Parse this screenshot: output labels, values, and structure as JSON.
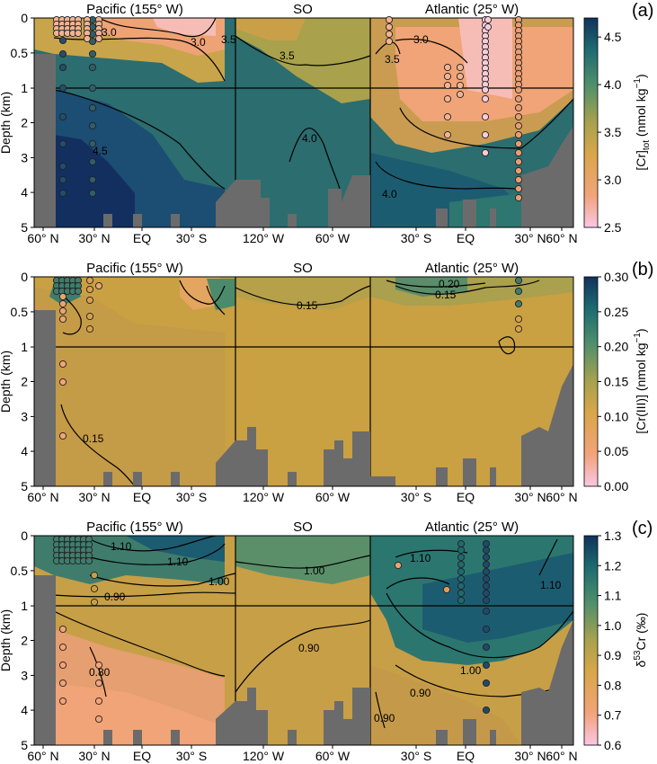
{
  "chart_data": [
    {
      "panel": "(a)",
      "type": "heatmap",
      "ylabel": "Depth (km)",
      "yticks": [
        "0",
        "0.5",
        "1",
        "2",
        "3",
        "4",
        "5"
      ],
      "section_titles": [
        "Pacific (155° W)",
        "SO",
        "Atlantic (25° W)"
      ],
      "section_xticks": [
        [
          "60° N",
          "30° N",
          "EQ",
          "30° S"
        ],
        [
          "120° W",
          "60° W"
        ],
        [
          "30° S",
          "EQ",
          "30° N",
          "60° N"
        ]
      ],
      "colorbar": {
        "label": "[Cr]tot (nmol kg−1)",
        "range": [
          2.5,
          4.7
        ],
        "ticks": [
          "2.5",
          "3.0",
          "3.5",
          "4.0",
          "4.5"
        ],
        "colors": [
          "#f9c6e6",
          "#f3a37b",
          "#d9a64a",
          "#a8a24d",
          "#4f8f6c",
          "#1d6b70",
          "#11325c"
        ]
      },
      "contour_labels": [
        "3.0",
        "3.5",
        "3.0",
        "3.5",
        "4.5",
        "4.0",
        "3.0",
        "3.5",
        "4.0"
      ],
      "stations_dark": [
        7,
        8,
        9,
        10
      ],
      "stations_light": [
        10,
        10,
        10,
        14,
        14,
        14,
        10
      ],
      "stations_count": 81
    },
    {
      "panel": "(b)",
      "type": "heatmap",
      "ylabel": "Depth (km)",
      "yticks": [
        "0",
        "0.5",
        "1",
        "2",
        "3",
        "4",
        "5"
      ],
      "section_titles": [
        "Pacific (155° W)",
        "SO",
        "Atlantic (25° W)"
      ],
      "section_xticks": [
        [
          "60° N",
          "30° N",
          "EQ",
          "30° S"
        ],
        [
          "120° W",
          "60° W"
        ],
        [
          "30° S",
          "EQ",
          "30° N",
          "60° N"
        ]
      ],
      "colorbar": {
        "label": "[Cr(III)] (nmol kg−1)",
        "range": [
          0.0,
          0.3
        ],
        "ticks": [
          "0.00",
          "0.05",
          "0.10",
          "0.15",
          "0.20",
          "0.25",
          "0.30"
        ],
        "colors": [
          "#f9c6e6",
          "#f3a37b",
          "#d9a64a",
          "#a8a24d",
          "#4f8f6c",
          "#1d6b70",
          "#11325c"
        ]
      },
      "contour_labels": [
        "0.15",
        "0.15",
        "0.20",
        "0.15"
      ],
      "stations_count": 24
    },
    {
      "panel": "(c)",
      "type": "heatmap",
      "ylabel": "Depth (km)",
      "yticks": [
        "0",
        "0.5",
        "1",
        "2",
        "3",
        "4",
        "5"
      ],
      "section_titles": [
        "Pacific (155° W)",
        "SO",
        "Atlantic (25° W)"
      ],
      "section_xticks": [
        [
          "60° N",
          "30° N",
          "EQ",
          "30° S"
        ],
        [
          "120° W",
          "60° W"
        ],
        [
          "30° S",
          "EQ",
          "30° N",
          "60° N"
        ]
      ],
      "colorbar": {
        "label": "δ53Cr (‰)",
        "range": [
          0.6,
          1.3
        ],
        "ticks": [
          "0.6",
          "0.7",
          "0.8",
          "0.9",
          "1.0",
          "1.1",
          "1.2",
          "1.3"
        ],
        "colors": [
          "#f9c6e6",
          "#f3a37b",
          "#d9a64a",
          "#a8a24d",
          "#4f8f6c",
          "#1d6b70",
          "#11325c"
        ]
      },
      "contour_labels": [
        "1.10",
        "1.10",
        "1.00",
        "0.90",
        "0.80",
        "1.00",
        "0.90",
        "1.10",
        "1.10",
        "1.00",
        "0.90",
        "0.90"
      ],
      "stations_count": 60
    }
  ],
  "panel_labels": [
    "(a)",
    "(b)",
    "(c)"
  ],
  "colorbar_labels": {
    "a_main": "[Cr]",
    "a_sub": "tot",
    "a_unit": "(nmol kg",
    "a_exp": "−1",
    "a_close": ")",
    "b_main": "[Cr(III)] (nmol kg",
    "b_exp": "−1",
    "b_close": ")",
    "c_pre": "δ",
    "c_sup": "53",
    "c_post": "Cr (‰)"
  }
}
